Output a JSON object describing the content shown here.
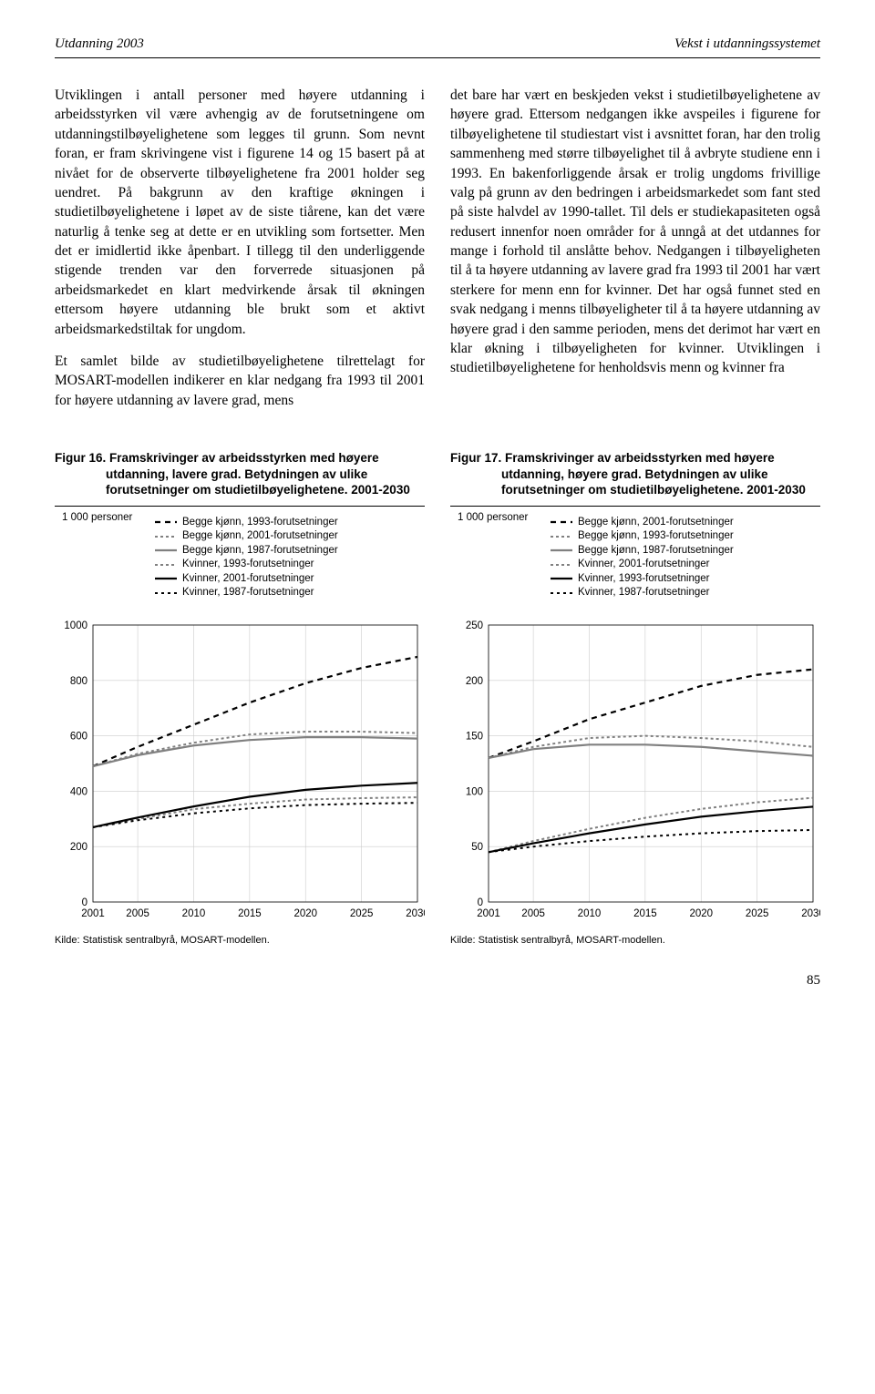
{
  "header": {
    "left": "Utdanning 2003",
    "right": "Vekst i utdanningssystemet"
  },
  "body": {
    "left_p1": "Utviklingen i antall personer med høyere utdanning i arbeidsstyrken vil være avhengig av de forutsetningene om utdanningstilbøyelighetene som legges til grunn. Som nevnt foran, er fram skrivingene vist i figurene 14 og 15 basert på at nivået for de observerte tilbøyelighetene fra 2001 holder seg uendret. På bakgrunn av den kraftige økningen i studietilbøyelighetene i løpet av de siste tiårene, kan det være naturlig å tenke seg at dette er en utvikling som fortsetter. Men det er imidlertid ikke åpenbart. I tillegg til den underliggende stigende trenden var den forverrede situasjonen på arbeidsmarkedet en klart medvirkende årsak til økningen ettersom høyere utdanning ble brukt som et aktivt arbeidsmarkedstiltak for ungdom.",
    "left_p2": "Et samlet bilde av studietilbøyelighetene tilrettelagt for MOSART-modellen indikerer en klar nedgang fra 1993 til 2001 for høyere utdanning av lavere grad, mens",
    "right_p1": "det bare har vært en beskjeden vekst i studietilbøyelighetene av høyere grad. Ettersom nedgangen ikke avspeiles i figurene for tilbøyelighetene til studiestart vist i avsnittet foran, har den trolig sammenheng med større tilbøyelighet til å avbryte studiene enn i 1993. En bakenforliggende årsak er trolig ungdoms frivillige valg på grunn av den bedringen i arbeidsmarkedet som fant sted på siste halvdel av 1990-tallet. Til dels er studiekapasiteten også redusert innenfor noen områder for å unngå at det utdannes for mange i forhold til anslåtte behov. Nedgangen i tilbøyeligheten til å ta høyere utdanning av lavere grad fra 1993 til 2001 har vært sterkere for menn enn for kvinner. Det har også funnet sted en svak nedgang i menns tilbøyeligheter til å ta høyere utdanning av høyere grad i den samme perioden, mens det derimot har vært en klar økning i tilbøyeligheten for kvinner. Utviklingen i studietilbøyelighetene for henholdsvis menn og kvinner fra"
  },
  "fig16": {
    "title_prefix": "Figur 16.",
    "title_rest": "Framskrivinger av arbeidsstyrken med høyere utdanning, lavere grad. Betydningen av ulike forutsetninger om studietilbøyelighetene. 2001-2030",
    "ylabel": "1 000 personer",
    "ylim": [
      0,
      1000
    ],
    "yticks": [
      0,
      200,
      400,
      600,
      800,
      1000
    ],
    "xticks": [
      2001,
      2005,
      2010,
      2015,
      2020,
      2025,
      2030
    ],
    "legend": [
      {
        "label": "Begge kjønn, 1993-forutsetninger",
        "color": "#000000",
        "dash": "6,5",
        "width": 2.2
      },
      {
        "label": "Begge kjønn, 2001-forutsetninger",
        "color": "#808080",
        "dash": "3,3",
        "width": 2.0
      },
      {
        "label": "Begge kjønn, 1987-forutsetninger",
        "color": "#808080",
        "dash": "0",
        "width": 2.2
      },
      {
        "label": "Kvinner, 1993-forutsetninger",
        "color": "#808080",
        "dash": "3,3",
        "width": 2.0
      },
      {
        "label": "Kvinner, 2001-forutsetninger",
        "color": "#000000",
        "dash": "0",
        "width": 2.2
      },
      {
        "label": "Kvinner, 1987-forutsetninger",
        "color": "#000000",
        "dash": "3,4",
        "width": 2.0
      }
    ],
    "series": [
      {
        "color": "#000000",
        "dash": "6,5",
        "width": 2.2,
        "points": [
          [
            2001,
            490
          ],
          [
            2005,
            560
          ],
          [
            2010,
            640
          ],
          [
            2015,
            720
          ],
          [
            2020,
            790
          ],
          [
            2025,
            845
          ],
          [
            2030,
            885
          ]
        ]
      },
      {
        "color": "#808080",
        "dash": "3,3",
        "width": 2.0,
        "points": [
          [
            2001,
            490
          ],
          [
            2005,
            535
          ],
          [
            2010,
            575
          ],
          [
            2015,
            605
          ],
          [
            2020,
            615
          ],
          [
            2025,
            615
          ],
          [
            2030,
            610
          ]
        ]
      },
      {
        "color": "#808080",
        "dash": "0",
        "width": 2.2,
        "points": [
          [
            2001,
            490
          ],
          [
            2005,
            530
          ],
          [
            2010,
            565
          ],
          [
            2015,
            585
          ],
          [
            2020,
            595
          ],
          [
            2025,
            595
          ],
          [
            2030,
            590
          ]
        ]
      },
      {
        "color": "#808080",
        "dash": "3,3",
        "width": 2.0,
        "points": [
          [
            2001,
            270
          ],
          [
            2005,
            300
          ],
          [
            2010,
            335
          ],
          [
            2015,
            355
          ],
          [
            2020,
            370
          ],
          [
            2025,
            375
          ],
          [
            2030,
            378
          ]
        ]
      },
      {
        "color": "#000000",
        "dash": "0",
        "width": 2.2,
        "points": [
          [
            2001,
            270
          ],
          [
            2005,
            305
          ],
          [
            2010,
            345
          ],
          [
            2015,
            380
          ],
          [
            2020,
            405
          ],
          [
            2025,
            420
          ],
          [
            2030,
            430
          ]
        ]
      },
      {
        "color": "#000000",
        "dash": "3,4",
        "width": 2.0,
        "points": [
          [
            2001,
            270
          ],
          [
            2005,
            295
          ],
          [
            2010,
            320
          ],
          [
            2015,
            338
          ],
          [
            2020,
            350
          ],
          [
            2025,
            355
          ],
          [
            2030,
            358
          ]
        ]
      }
    ],
    "source": "Kilde: Statistisk sentralbyrå, MOSART-modellen."
  },
  "fig17": {
    "title_prefix": "Figur 17.",
    "title_rest": "Framskrivinger av arbeidsstyrken med høyere utdanning, høyere grad. Betydningen av ulike forutsetninger om studietilbøyelighetene. 2001-2030",
    "ylabel": "1 000 personer",
    "ylim": [
      0,
      250
    ],
    "yticks": [
      0,
      50,
      100,
      150,
      200,
      250
    ],
    "xticks": [
      2001,
      2005,
      2010,
      2015,
      2020,
      2025,
      2030
    ],
    "legend": [
      {
        "label": "Begge kjønn, 2001-forutsetninger",
        "color": "#000000",
        "dash": "6,5",
        "width": 2.2
      },
      {
        "label": "Begge kjønn, 1993-forutsetninger",
        "color": "#808080",
        "dash": "3,3",
        "width": 2.0
      },
      {
        "label": "Begge kjønn, 1987-forutsetninger",
        "color": "#808080",
        "dash": "0",
        "width": 2.2
      },
      {
        "label": "Kvinner, 2001-forutsetninger",
        "color": "#808080",
        "dash": "3,3",
        "width": 2.0
      },
      {
        "label": "Kvinner, 1993-forutsetninger",
        "color": "#000000",
        "dash": "0",
        "width": 2.2
      },
      {
        "label": "Kvinner, 1987-forutsetninger",
        "color": "#000000",
        "dash": "3,4",
        "width": 2.0
      }
    ],
    "series": [
      {
        "color": "#000000",
        "dash": "6,5",
        "width": 2.2,
        "points": [
          [
            2001,
            130
          ],
          [
            2005,
            145
          ],
          [
            2010,
            165
          ],
          [
            2015,
            180
          ],
          [
            2020,
            195
          ],
          [
            2025,
            205
          ],
          [
            2030,
            210
          ]
        ]
      },
      {
        "color": "#808080",
        "dash": "3,3",
        "width": 2.0,
        "points": [
          [
            2001,
            130
          ],
          [
            2005,
            140
          ],
          [
            2010,
            148
          ],
          [
            2015,
            150
          ],
          [
            2020,
            148
          ],
          [
            2025,
            145
          ],
          [
            2030,
            140
          ]
        ]
      },
      {
        "color": "#808080",
        "dash": "0",
        "width": 2.2,
        "points": [
          [
            2001,
            130
          ],
          [
            2005,
            138
          ],
          [
            2010,
            142
          ],
          [
            2015,
            142
          ],
          [
            2020,
            140
          ],
          [
            2025,
            136
          ],
          [
            2030,
            132
          ]
        ]
      },
      {
        "color": "#808080",
        "dash": "3,3",
        "width": 2.0,
        "points": [
          [
            2001,
            45
          ],
          [
            2005,
            55
          ],
          [
            2010,
            66
          ],
          [
            2015,
            76
          ],
          [
            2020,
            84
          ],
          [
            2025,
            90
          ],
          [
            2030,
            94
          ]
        ]
      },
      {
        "color": "#000000",
        "dash": "0",
        "width": 2.2,
        "points": [
          [
            2001,
            45
          ],
          [
            2005,
            53
          ],
          [
            2010,
            62
          ],
          [
            2015,
            70
          ],
          [
            2020,
            77
          ],
          [
            2025,
            82
          ],
          [
            2030,
            86
          ]
        ]
      },
      {
        "color": "#000000",
        "dash": "3,4",
        "width": 2.0,
        "points": [
          [
            2001,
            45
          ],
          [
            2005,
            50
          ],
          [
            2010,
            55
          ],
          [
            2015,
            59
          ],
          [
            2020,
            62
          ],
          [
            2025,
            64
          ],
          [
            2030,
            65
          ]
        ]
      }
    ],
    "source": "Kilde: Statistisk sentralbyrå, MOSART-modellen."
  },
  "page_number": "85"
}
